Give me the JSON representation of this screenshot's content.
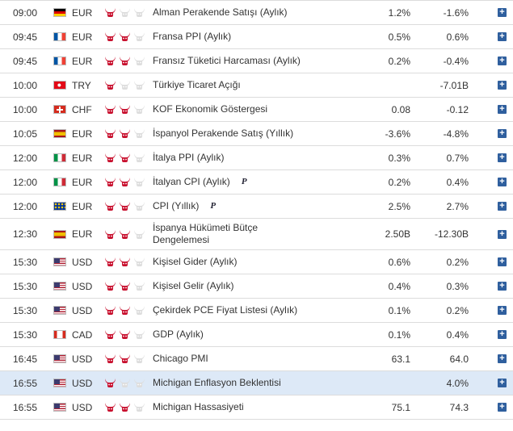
{
  "rows": [
    {
      "time": "09:00",
      "flag": "de",
      "currency": "EUR",
      "importance": 1,
      "event": "Alman Perakende Satışı (Aylık)",
      "badge": "",
      "actual": "1.2%",
      "forecast": "-1.6%"
    },
    {
      "time": "09:45",
      "flag": "fr",
      "currency": "EUR",
      "importance": 2,
      "event": "Fransa PPI (Aylık)",
      "badge": "",
      "actual": "0.5%",
      "forecast": "0.6%"
    },
    {
      "time": "09:45",
      "flag": "fr",
      "currency": "EUR",
      "importance": 2,
      "event": "Fransız Tüketici Harcaması (Aylık)",
      "badge": "",
      "actual": "0.2%",
      "forecast": "-0.4%"
    },
    {
      "time": "10:00",
      "flag": "tr",
      "currency": "TRY",
      "importance": 1,
      "event": "Türkiye Ticaret Açığı",
      "badge": "",
      "actual": "",
      "forecast": "-7.01B"
    },
    {
      "time": "10:00",
      "flag": "ch",
      "currency": "CHF",
      "importance": 2,
      "event": "KOF Ekonomik Göstergesi",
      "badge": "",
      "actual": "0.08",
      "forecast": "-0.12"
    },
    {
      "time": "10:05",
      "flag": "es",
      "currency": "EUR",
      "importance": 2,
      "event": "İspanyol Perakende Satış (Yıllık)",
      "badge": "",
      "actual": "-3.6%",
      "forecast": "-4.8%"
    },
    {
      "time": "12:00",
      "flag": "it",
      "currency": "EUR",
      "importance": 2,
      "event": "İtalya PPI (Aylık)",
      "badge": "",
      "actual": "0.3%",
      "forecast": "0.7%"
    },
    {
      "time": "12:00",
      "flag": "it",
      "currency": "EUR",
      "importance": 2,
      "event": "İtalyan CPI (Aylık)",
      "badge": "P",
      "actual": "0.2%",
      "forecast": "0.4%"
    },
    {
      "time": "12:00",
      "flag": "eu",
      "currency": "EUR",
      "importance": 2,
      "event": "CPI (Yıllık)",
      "badge": "P",
      "actual": "2.5%",
      "forecast": "2.7%"
    },
    {
      "time": "12:30",
      "flag": "es",
      "currency": "EUR",
      "importance": 2,
      "event": "İspanya Hükümeti Bütçe Dengelemesi",
      "badge": "",
      "actual": "2.50B",
      "forecast": "-12.30B"
    },
    {
      "time": "15:30",
      "flag": "us",
      "currency": "USD",
      "importance": 2,
      "event": "Kişisel Gider (Aylık)",
      "badge": "",
      "actual": "0.6%",
      "forecast": "0.2%"
    },
    {
      "time": "15:30",
      "flag": "us",
      "currency": "USD",
      "importance": 2,
      "event": "Kişisel Gelir (Aylık)",
      "badge": "",
      "actual": "0.4%",
      "forecast": "0.3%"
    },
    {
      "time": "15:30",
      "flag": "us",
      "currency": "USD",
      "importance": 2,
      "event": "Çekirdek PCE Fiyat Listesi (Aylık)",
      "badge": "",
      "actual": "0.1%",
      "forecast": "0.2%"
    },
    {
      "time": "15:30",
      "flag": "ca",
      "currency": "CAD",
      "importance": 2,
      "event": "GDP (Aylık)",
      "badge": "",
      "actual": "0.1%",
      "forecast": "0.4%"
    },
    {
      "time": "16:45",
      "flag": "us",
      "currency": "USD",
      "importance": 2,
      "event": "Chicago PMI",
      "badge": "",
      "actual": "63.1",
      "forecast": "64.0"
    },
    {
      "time": "16:55",
      "flag": "us",
      "currency": "USD",
      "importance": 1,
      "event": "Michigan Enflasyon Beklentisi",
      "badge": "",
      "actual": "",
      "forecast": "4.0%",
      "highlight": true
    },
    {
      "time": "16:55",
      "flag": "us",
      "currency": "USD",
      "importance": 2,
      "event": "Michigan Hassasiyeti",
      "badge": "",
      "actual": "75.1",
      "forecast": "74.3"
    }
  ],
  "colors": {
    "bull_active": "#c8102e",
    "bull_inactive": "#dddddd",
    "add_button": "#2f5f9e",
    "highlight_row": "#dde9f7"
  },
  "icons": {
    "importance": "bull-icon",
    "add": "plus-icon"
  }
}
